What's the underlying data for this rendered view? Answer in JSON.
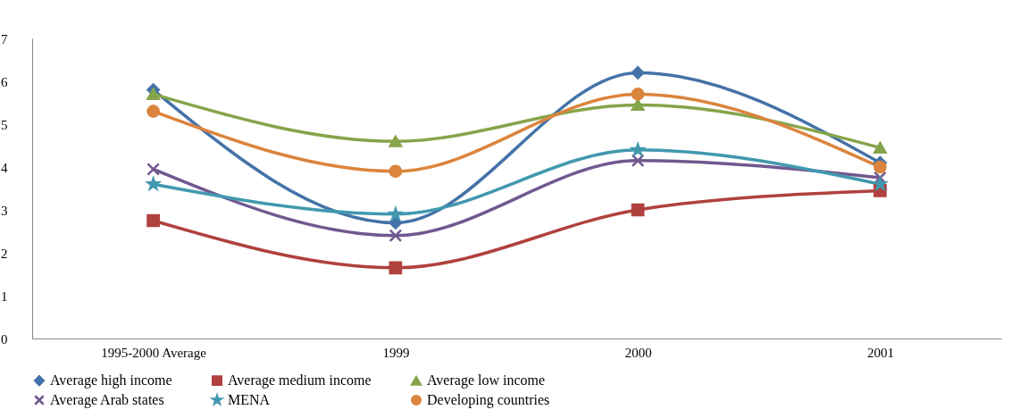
{
  "chart_data": {
    "type": "line",
    "categories": [
      "1995-2000 Average",
      "1999",
      "2000",
      "2001"
    ],
    "ylim": [
      0,
      7
    ],
    "yticks": [
      0,
      1,
      2,
      3,
      4,
      5,
      6,
      7
    ],
    "grid": false,
    "legend": "bottom",
    "line_style": "solid",
    "series": [
      {
        "name": "Average high income",
        "color": "#4472a8",
        "marker": "diamond",
        "values": [
          5.8,
          2.7,
          6.2,
          4.1
        ]
      },
      {
        "name": "Average medium income",
        "color": "#b0413e",
        "marker": "square",
        "values": [
          2.75,
          1.65,
          3.0,
          3.45
        ]
      },
      {
        "name": "Average low income",
        "color": "#86a44a",
        "marker": "triangle",
        "values": [
          5.7,
          4.6,
          5.45,
          4.45
        ]
      },
      {
        "name": "Average Arab states",
        "color": "#71588f",
        "marker": "cross",
        "values": [
          3.95,
          2.4,
          4.15,
          3.75
        ]
      },
      {
        "name": "MENA",
        "color": "#4198af",
        "marker": "star",
        "values": [
          3.6,
          2.9,
          4.4,
          3.6
        ]
      },
      {
        "name": "Developing countries",
        "color": "#db843d",
        "marker": "circle",
        "values": [
          5.3,
          3.9,
          5.7,
          4.0
        ]
      }
    ]
  }
}
